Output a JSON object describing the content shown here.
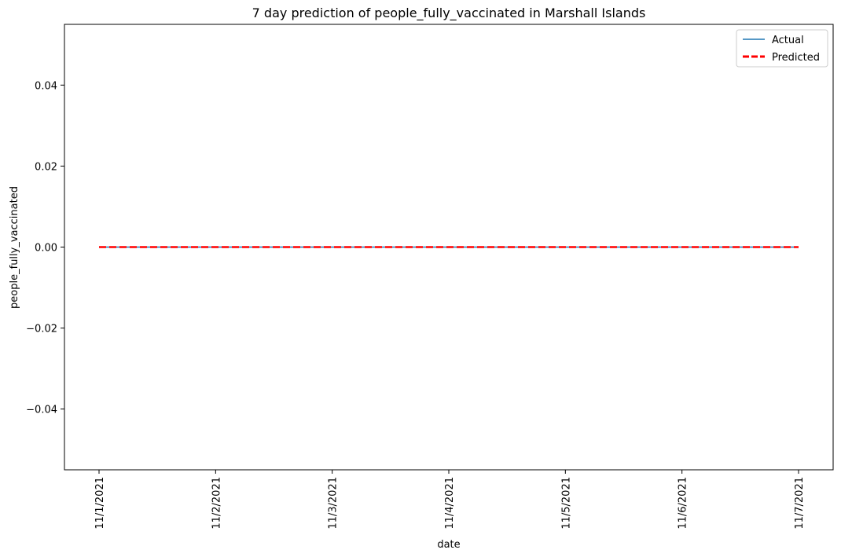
{
  "chart_data": {
    "type": "line",
    "title": "7 day prediction of people_fully_vaccinated in Marshall Islands",
    "xlabel": "date",
    "ylabel": "people_fully_vaccinated",
    "x": [
      "11/1/2021",
      "11/2/2021",
      "11/3/2021",
      "11/4/2021",
      "11/5/2021",
      "11/6/2021",
      "11/7/2021"
    ],
    "ylim": [
      -0.055,
      0.055
    ],
    "yticks": [
      -0.04,
      -0.02,
      0.0,
      0.02,
      0.04
    ],
    "ytick_labels": [
      "−0.04",
      "−0.02",
      "0.00",
      "0.02",
      "0.04"
    ],
    "grid": false,
    "legend_position": "top-right",
    "series": [
      {
        "name": "Actual",
        "values": [
          0,
          0,
          0,
          0,
          0,
          0,
          0
        ],
        "color": "#1f77b4",
        "style": "solid"
      },
      {
        "name": "Predicted",
        "values": [
          0,
          0,
          0,
          0,
          0,
          0,
          0
        ],
        "color": "#ff0000",
        "style": "dashed"
      }
    ]
  }
}
